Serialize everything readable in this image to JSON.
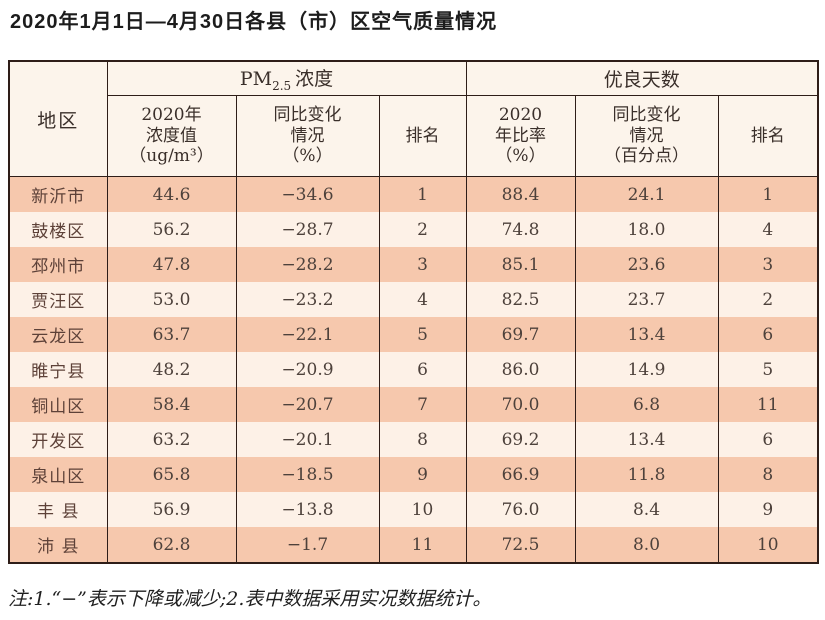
{
  "page": {
    "title": "2020年1月1日—4月30日各县（市）区空气质量情况",
    "note": "注:1.“−”表示下降或减少;2.表中数据采用实况数据统计。"
  },
  "colors": {
    "row_salmon": "#f6c8ad",
    "row_cream": "#fdf1e7",
    "header_bg": "#fcf4eb",
    "border": "#2e1d18"
  },
  "table": {
    "region_header": "地区",
    "pm25_group": {
      "prefix": "PM",
      "sub": "2.5",
      "suffix": "浓度"
    },
    "good_days_group": "优良天数",
    "subheaders": {
      "pm_value": "2020年\n浓度值\n（ug/m³）",
      "pm_change": "同比变化\n情况\n（%）",
      "pm_rank": "排名",
      "gd_ratio": "2020\n年比率\n（%）",
      "gd_change": "同比变化\n情况\n（百分点）",
      "gd_rank": "排名"
    },
    "rows": [
      {
        "region": "新沂市",
        "pm_value": "44.6",
        "pm_change": "−34.6",
        "pm_rank": "1",
        "gd_ratio": "88.4",
        "gd_change": "24.1",
        "gd_rank": "1"
      },
      {
        "region": "鼓楼区",
        "pm_value": "56.2",
        "pm_change": "−28.7",
        "pm_rank": "2",
        "gd_ratio": "74.8",
        "gd_change": "18.0",
        "gd_rank": "4"
      },
      {
        "region": "邳州市",
        "pm_value": "47.8",
        "pm_change": "−28.2",
        "pm_rank": "3",
        "gd_ratio": "85.1",
        "gd_change": "23.6",
        "gd_rank": "3"
      },
      {
        "region": "贾汪区",
        "pm_value": "53.0",
        "pm_change": "−23.2",
        "pm_rank": "4",
        "gd_ratio": "82.5",
        "gd_change": "23.7",
        "gd_rank": "2"
      },
      {
        "region": "云龙区",
        "pm_value": "63.7",
        "pm_change": "−22.1",
        "pm_rank": "5",
        "gd_ratio": "69.7",
        "gd_change": "13.4",
        "gd_rank": "6"
      },
      {
        "region": "睢宁县",
        "pm_value": "48.2",
        "pm_change": "−20.9",
        "pm_rank": "6",
        "gd_ratio": "86.0",
        "gd_change": "14.9",
        "gd_rank": "5"
      },
      {
        "region": "铜山区",
        "pm_value": "58.4",
        "pm_change": "−20.7",
        "pm_rank": "7",
        "gd_ratio": "70.0",
        "gd_change": "6.8",
        "gd_rank": "11"
      },
      {
        "region": "开发区",
        "pm_value": "63.2",
        "pm_change": "−20.1",
        "pm_rank": "8",
        "gd_ratio": "69.2",
        "gd_change": "13.4",
        "gd_rank": "6"
      },
      {
        "region": "泉山区",
        "pm_value": "65.8",
        "pm_change": "−18.5",
        "pm_rank": "9",
        "gd_ratio": "66.9",
        "gd_change": "11.8",
        "gd_rank": "8"
      },
      {
        "region": "丰 县",
        "pm_value": "56.9",
        "pm_change": "−13.8",
        "pm_rank": "10",
        "gd_ratio": "76.0",
        "gd_change": "8.4",
        "gd_rank": "9"
      },
      {
        "region": "沛 县",
        "pm_value": "62.8",
        "pm_change": "−1.7",
        "pm_rank": "11",
        "gd_ratio": "72.5",
        "gd_change": "8.0",
        "gd_rank": "10"
      }
    ]
  }
}
